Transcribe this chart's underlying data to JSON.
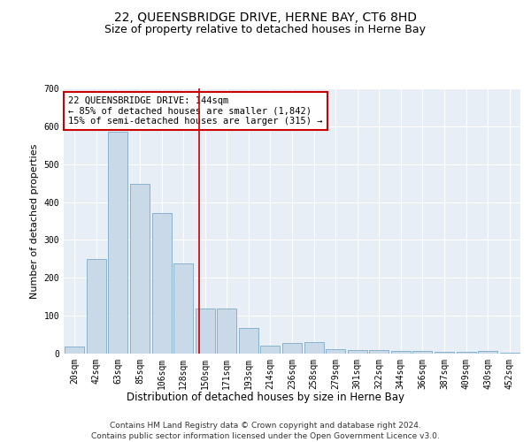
{
  "title": "22, QUEENSBRIDGE DRIVE, HERNE BAY, CT6 8HD",
  "subtitle": "Size of property relative to detached houses in Herne Bay",
  "xlabel": "Distribution of detached houses by size in Herne Bay",
  "ylabel": "Number of detached properties",
  "bar_color": "#c9d9e8",
  "bar_edge_color": "#7aaac8",
  "background_color": "#e8eef5",
  "categories": [
    "20sqm",
    "42sqm",
    "63sqm",
    "85sqm",
    "106sqm",
    "128sqm",
    "150sqm",
    "171sqm",
    "193sqm",
    "214sqm",
    "236sqm",
    "258sqm",
    "279sqm",
    "301sqm",
    "322sqm",
    "344sqm",
    "366sqm",
    "387sqm",
    "409sqm",
    "430sqm",
    "452sqm"
  ],
  "values": [
    18,
    250,
    585,
    447,
    372,
    238,
    118,
    118,
    67,
    20,
    28,
    30,
    12,
    10,
    9,
    8,
    6,
    5,
    4,
    8,
    3
  ],
  "ylim": [
    0,
    700
  ],
  "yticks": [
    0,
    100,
    200,
    300,
    400,
    500,
    600,
    700
  ],
  "annotation_text": "22 QUEENSBRIDGE DRIVE: 144sqm\n← 85% of detached houses are smaller (1,842)\n15% of semi-detached houses are larger (315) →",
  "annotation_box_color": "#ffffff",
  "annotation_border_color": "#cc0000",
  "footer_line1": "Contains HM Land Registry data © Crown copyright and database right 2024.",
  "footer_line2": "Contains public sector information licensed under the Open Government Licence v3.0.",
  "title_fontsize": 10,
  "subtitle_fontsize": 9,
  "xlabel_fontsize": 8.5,
  "ylabel_fontsize": 8,
  "tick_fontsize": 7,
  "annotation_fontsize": 7.5,
  "footer_fontsize": 6.5
}
